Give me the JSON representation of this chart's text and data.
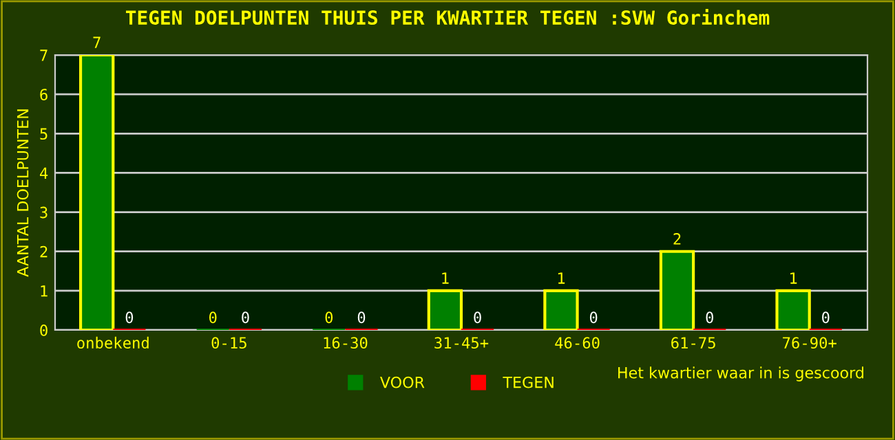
{
  "chart_data": {
    "type": "bar",
    "title": "TEGEN DOELPUNTEN THUIS PER KWARTIER TEGEN :SVW Gorinchem",
    "ylabel": "AANTAL DOELPUNTEN",
    "xlabel": "Het kwartier waar in is gescoord",
    "categories": [
      "onbekend",
      "0-15",
      "16-30",
      "31-45+",
      "46-60",
      "61-75",
      "76-90+"
    ],
    "series": [
      {
        "name": "VOOR",
        "color": "#008000",
        "values": [
          7,
          0,
          0,
          1,
          1,
          2,
          1
        ]
      },
      {
        "name": "TEGEN",
        "color": "#ff0000",
        "values": [
          0,
          0,
          0,
          0,
          0,
          0,
          0
        ]
      }
    ],
    "ylim": [
      0,
      7
    ],
    "yticks": [
      0,
      1,
      2,
      3,
      4,
      5,
      6,
      7
    ],
    "grid": "y",
    "legend": "bottom",
    "data_labels": true
  }
}
